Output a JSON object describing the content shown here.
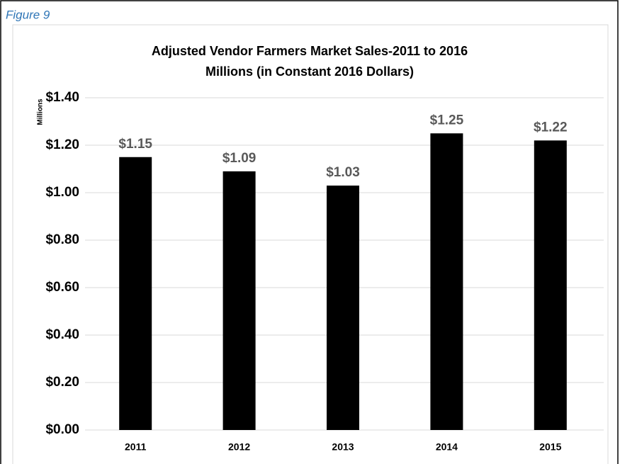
{
  "figure_label": "Figure 9",
  "chart_data": {
    "type": "bar",
    "title": "Adjusted Vendor Farmers Market Sales-2011 to 2016",
    "subtitle": "Millions (in Constant 2016 Dollars)",
    "y_label": "Millions",
    "categories": [
      "2011",
      "2012",
      "2013",
      "2014",
      "2015"
    ],
    "values": [
      1.15,
      1.09,
      1.03,
      1.25,
      1.22
    ],
    "value_labels": [
      "$1.15",
      "$1.09",
      "$1.03",
      "$1.25",
      "$1.22"
    ],
    "color": "#000000",
    "ylim": [
      0,
      1.4
    ],
    "yticks": [
      {
        "value": 0,
        "label": "$0.00"
      },
      {
        "value": 0.2,
        "label": "$0.20"
      },
      {
        "value": 0.4,
        "label": "$0.40"
      },
      {
        "value": 0.6,
        "label": "$0.60"
      },
      {
        "value": 0.8,
        "label": "$0.80"
      },
      {
        "value": 1.0,
        "label": "$1.00"
      },
      {
        "value": 1.2,
        "label": "$1.20"
      },
      {
        "value": 1.4,
        "label": "$1.40"
      }
    ],
    "grid": true
  }
}
